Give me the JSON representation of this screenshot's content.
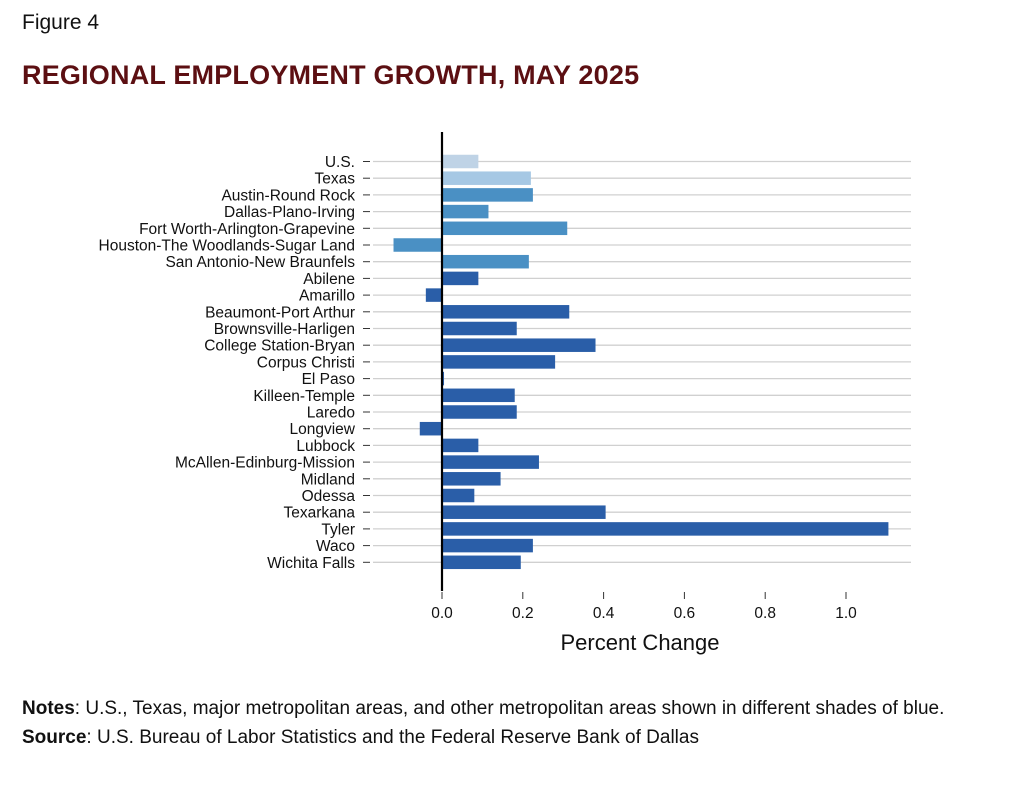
{
  "figure_label": "Figure 4",
  "title": "REGIONAL EMPLOYMENT GROWTH, MAY 2025",
  "notes": {
    "notes_label": "Notes",
    "notes_text": ": U.S., Texas, major metropolitan areas, and other metropolitan areas shown in different shades of blue.",
    "source_label": "Source",
    "source_text": ": U.S. Bureau of Labor Statistics and the Federal Reserve Bank of Dallas"
  },
  "colors": {
    "us": "#bfd3e6",
    "texas": "#a6c8e4",
    "major": "#4a90c4",
    "other": "#2a5ea8",
    "gridline": "#d0d0d0",
    "zero_line": "#000000",
    "title": "#5c0f12"
  },
  "chart_data": {
    "type": "bar",
    "orientation": "horizontal",
    "title": "REGIONAL EMPLOYMENT GROWTH, MAY 2025",
    "xlabel": "Percent Change",
    "ylabel": "",
    "xlim": [
      -0.12,
      1.16
    ],
    "xticks": [
      0.0,
      0.2,
      0.4,
      0.6,
      0.8,
      1.0
    ],
    "xtick_labels": [
      "0.0",
      "0.2",
      "0.4",
      "0.6",
      "0.8",
      "1.0"
    ],
    "grid": "horizontal",
    "categories": [
      "U.S.",
      "Texas",
      "Austin-Round Rock",
      "Dallas-Plano-Irving",
      "Fort Worth-Arlington-Grapevine",
      "Houston-The Woodlands-Sugar Land",
      "San Antonio-New Braunfels",
      "Abilene",
      "Amarillo",
      "Beaumont-Port Arthur",
      "Brownsville-Harligen",
      "College Station-Bryan",
      "Corpus Christi",
      "El Paso",
      "Killeen-Temple",
      "Laredo",
      "Longview",
      "Lubbock",
      "McAllen-Edinburg-Mission",
      "Midland",
      "Odessa",
      "Texarkana",
      "Tyler",
      "Waco",
      "Wichita Falls"
    ],
    "values": [
      0.09,
      0.22,
      0.225,
      0.115,
      0.31,
      -0.12,
      0.215,
      0.09,
      -0.04,
      0.315,
      0.185,
      0.38,
      0.28,
      0.005,
      0.18,
      0.185,
      -0.055,
      0.09,
      0.24,
      0.145,
      0.08,
      0.405,
      1.105,
      0.225,
      0.195
    ],
    "groups": [
      "us",
      "texas",
      "major",
      "major",
      "major",
      "major",
      "major",
      "other",
      "other",
      "other",
      "other",
      "other",
      "other",
      "other",
      "other",
      "other",
      "other",
      "other",
      "other",
      "other",
      "other",
      "other",
      "other",
      "other",
      "other"
    ]
  }
}
